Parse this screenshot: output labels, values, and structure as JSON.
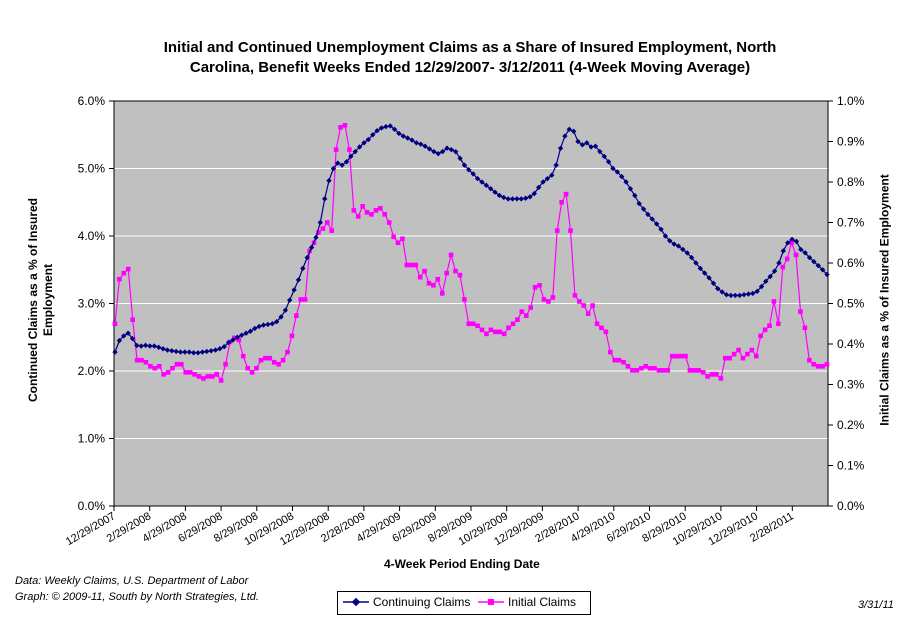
{
  "title_line1": "Initial and Continued Unemployment Claims as a Share of Insured Employment, North",
  "title_line2": "Carolina, Benefit Weeks Ended 12/29/2007- 3/12/2011 (4-Week Moving Average)",
  "ylabel_left_line1": "Continued Claims as a % of Insured",
  "ylabel_left_line2": "Employment",
  "ylabel_right": "Initial Claims as a % of Insured Employment",
  "xlabel": "4-Week Period Ending Date",
  "note_data": "Data:  Weekly Claims, U.S. Department of Labor",
  "note_graph": "Graph: © 2009-11, South by North Strategies, Ltd.",
  "date_stamp": "3/31/11",
  "legend": {
    "continuing": "Continuing Claims",
    "initial": "Initial Claims"
  },
  "colors": {
    "continuing": "#000080",
    "initial": "#ff00ff",
    "plot_bg": "#c0c0c0",
    "grid": "#ffffff"
  },
  "chart_data": {
    "type": "line",
    "x_start": "12/29/2007",
    "x_end": "3/12/2011",
    "x_interval": "weekly",
    "y_left_ticks": [
      "0.0%",
      "1.0%",
      "2.0%",
      "3.0%",
      "4.0%",
      "5.0%",
      "6.0%"
    ],
    "y_right_ticks": [
      "0.0%",
      "0.1%",
      "0.2%",
      "0.3%",
      "0.4%",
      "0.5%",
      "0.6%",
      "0.7%",
      "0.8%",
      "0.9%",
      "1.0%"
    ],
    "y_left_range": [
      0,
      6
    ],
    "y_right_range": [
      0,
      1
    ],
    "x_tick_labels": [
      "12/29/2007",
      "2/29/2008",
      "4/29/2008",
      "6/29/2008",
      "8/29/2008",
      "10/29/2008",
      "12/29/2008",
      "2/28/2009",
      "4/29/2009",
      "6/29/2009",
      "8/29/2009",
      "10/29/2009",
      "12/29/2009",
      "2/28/2010",
      "4/29/2010",
      "6/29/2010",
      "8/29/2010",
      "10/29/2010",
      "12/29/2010",
      "2/28/2011"
    ],
    "grid": true,
    "legend_position": "bottom-center",
    "series": [
      {
        "name": "Continuing Claims",
        "axis": "left",
        "unit": "%",
        "values": [
          2.28,
          2.45,
          2.52,
          2.56,
          2.48,
          2.38,
          2.37,
          2.38,
          2.37,
          2.37,
          2.35,
          2.33,
          2.31,
          2.3,
          2.29,
          2.28,
          2.28,
          2.28,
          2.27,
          2.27,
          2.28,
          2.29,
          2.3,
          2.31,
          2.33,
          2.36,
          2.42,
          2.46,
          2.5,
          2.53,
          2.56,
          2.59,
          2.63,
          2.66,
          2.68,
          2.69,
          2.7,
          2.73,
          2.8,
          2.9,
          3.05,
          3.2,
          3.35,
          3.52,
          3.68,
          3.83,
          3.98,
          4.2,
          4.55,
          4.82,
          5.0,
          5.08,
          5.05,
          5.1,
          5.18,
          5.25,
          5.32,
          5.38,
          5.43,
          5.5,
          5.56,
          5.6,
          5.62,
          5.63,
          5.58,
          5.52,
          5.48,
          5.45,
          5.42,
          5.38,
          5.36,
          5.33,
          5.29,
          5.25,
          5.22,
          5.25,
          5.3,
          5.28,
          5.25,
          5.15,
          5.05,
          4.98,
          4.92,
          4.85,
          4.8,
          4.75,
          4.7,
          4.65,
          4.6,
          4.57,
          4.55,
          4.55,
          4.55,
          4.55,
          4.56,
          4.58,
          4.63,
          4.72,
          4.8,
          4.85,
          4.9,
          5.05,
          5.3,
          5.48,
          5.58,
          5.55,
          5.4,
          5.35,
          5.38,
          5.32,
          5.33,
          5.25,
          5.18,
          5.1,
          5.0,
          4.95,
          4.88,
          4.8,
          4.7,
          4.6,
          4.48,
          4.4,
          4.32,
          4.25,
          4.18,
          4.1,
          4.0,
          3.93,
          3.88,
          3.85,
          3.8,
          3.75,
          3.68,
          3.6,
          3.52,
          3.45,
          3.38,
          3.3,
          3.22,
          3.17,
          3.13,
          3.12,
          3.12,
          3.12,
          3.13,
          3.14,
          3.15,
          3.18,
          3.25,
          3.33,
          3.4,
          3.48,
          3.6,
          3.78,
          3.9,
          3.95,
          3.92,
          3.8,
          3.75,
          3.68,
          3.62,
          3.56,
          3.5,
          3.43
        ]
      },
      {
        "name": "Initial Claims",
        "axis": "right",
        "unit": "%",
        "values": [
          0.45,
          0.56,
          0.575,
          0.585,
          0.46,
          0.36,
          0.36,
          0.355,
          0.345,
          0.34,
          0.345,
          0.325,
          0.33,
          0.34,
          0.35,
          0.35,
          0.33,
          0.33,
          0.325,
          0.32,
          0.315,
          0.32,
          0.32,
          0.325,
          0.31,
          0.35,
          0.405,
          0.415,
          0.41,
          0.37,
          0.34,
          0.33,
          0.34,
          0.36,
          0.365,
          0.365,
          0.355,
          0.35,
          0.36,
          0.38,
          0.42,
          0.47,
          0.51,
          0.51,
          0.63,
          0.65,
          0.675,
          0.685,
          0.7,
          0.68,
          0.88,
          0.935,
          0.94,
          0.88,
          0.73,
          0.715,
          0.74,
          0.725,
          0.72,
          0.73,
          0.735,
          0.72,
          0.7,
          0.665,
          0.65,
          0.66,
          0.595,
          0.595,
          0.595,
          0.565,
          0.58,
          0.55,
          0.545,
          0.56,
          0.525,
          0.575,
          0.62,
          0.58,
          0.57,
          0.51,
          0.45,
          0.45,
          0.445,
          0.435,
          0.425,
          0.435,
          0.43,
          0.43,
          0.425,
          0.44,
          0.45,
          0.46,
          0.48,
          0.47,
          0.49,
          0.54,
          0.545,
          0.51,
          0.505,
          0.515,
          0.68,
          0.75,
          0.77,
          0.68,
          0.52,
          0.505,
          0.495,
          0.475,
          0.495,
          0.45,
          0.44,
          0.43,
          0.38,
          0.36,
          0.36,
          0.355,
          0.345,
          0.335,
          0.335,
          0.34,
          0.345,
          0.34,
          0.34,
          0.335,
          0.335,
          0.335,
          0.37,
          0.37,
          0.37,
          0.37,
          0.335,
          0.335,
          0.335,
          0.33,
          0.32,
          0.325,
          0.325,
          0.315,
          0.365,
          0.365,
          0.375,
          0.385,
          0.365,
          0.375,
          0.385,
          0.37,
          0.42,
          0.435,
          0.445,
          0.505,
          0.45,
          0.59,
          0.61,
          0.65,
          0.62,
          0.48,
          0.44,
          0.36,
          0.35,
          0.345,
          0.345,
          0.35
        ]
      }
    ]
  }
}
